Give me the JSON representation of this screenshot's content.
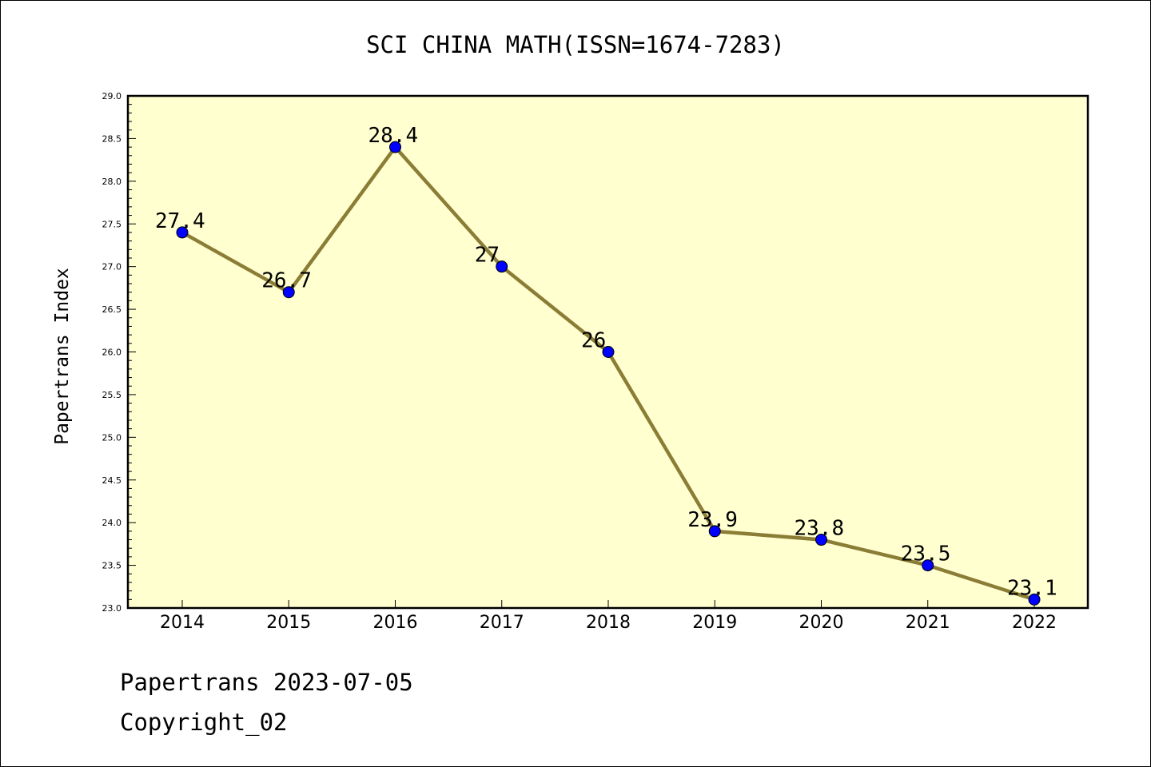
{
  "chart_data": {
    "type": "line",
    "title": "SCI CHINA MATH(ISSN=1674-7283)",
    "xlabel": "",
    "ylabel": "Papertrans Index",
    "categories": [
      "2014",
      "2015",
      "2016",
      "2017",
      "2018",
      "2019",
      "2020",
      "2021",
      "2022"
    ],
    "series": [
      {
        "values": [
          27.4,
          26.7,
          28.4,
          27,
          26,
          23.9,
          23.8,
          23.5,
          23.1
        ],
        "labels": [
          "27.4",
          "26.7",
          "28.4",
          "27",
          "26",
          "23.9",
          "23.8",
          "23.5",
          "23.1"
        ]
      }
    ],
    "ylim": [
      23.0,
      29.0
    ],
    "y_ticks": [
      "23.0",
      "23.5",
      "24.0",
      "24.5",
      "25.0",
      "25.5",
      "26.0",
      "26.5",
      "27.0",
      "27.5",
      "28.0",
      "28.5",
      "29.0"
    ],
    "grid": false,
    "colors": {
      "plot_background": "#ffffd0",
      "line": "#8b7d36",
      "marker": "#0000ff"
    }
  },
  "footer": {
    "date_line": "Papertrans 2023-07-05",
    "copyright": "Copyright_02"
  }
}
